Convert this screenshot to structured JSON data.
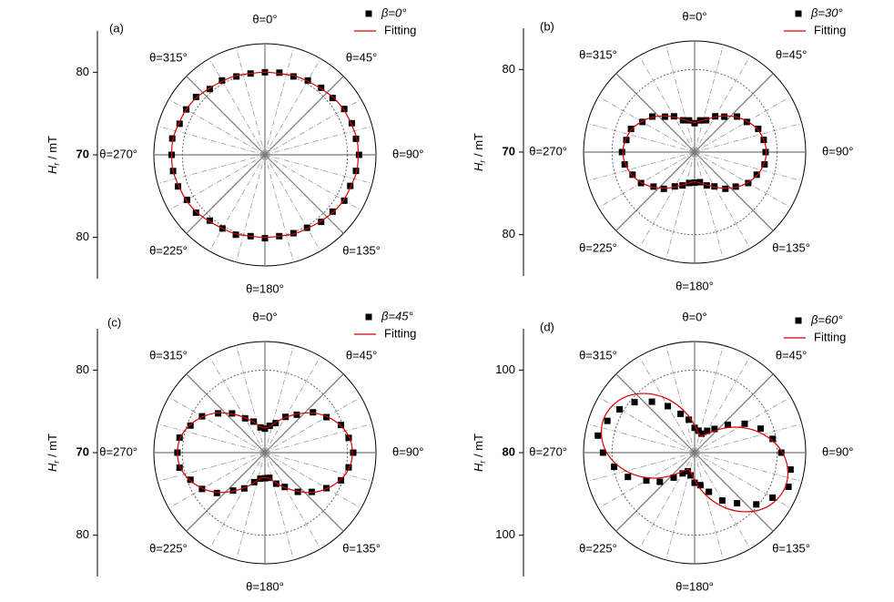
{
  "chart_data": [
    {
      "type": "polar",
      "panel_label": "(a)",
      "ylabel_symbol": "H",
      "ylabel_subscript": "r",
      "ylabel_unit": " / mT",
      "rlim": [
        70,
        85
      ],
      "rticks": [
        70,
        80
      ],
      "angle_ticks": [
        {
          "value": 0,
          "label": "θ=0°"
        },
        {
          "value": 45,
          "label": "θ=45°"
        },
        {
          "value": 90,
          "label": "θ=90°"
        },
        {
          "value": 135,
          "label": "θ=135°"
        },
        {
          "value": 180,
          "label": "θ=180°"
        },
        {
          "value": 225,
          "label": "θ=225°"
        },
        {
          "value": 270,
          "label": "θ=270°"
        },
        {
          "value": 315,
          "label": "θ=315°"
        }
      ],
      "theta": [
        0,
        10,
        20,
        30,
        40,
        50,
        60,
        70,
        80,
        90,
        100,
        110,
        120,
        130,
        140,
        150,
        160,
        170,
        180,
        190,
        200,
        210,
        220,
        230,
        240,
        250,
        260,
        270,
        280,
        290,
        300,
        310,
        320,
        330,
        340,
        350
      ],
      "series": [
        {
          "name": "β=0°",
          "color": "#000000",
          "values": [
            80.0,
            80.1,
            80.1,
            80.4,
            80.6,
            80.7,
            81.1,
            81.2,
            81.2,
            81.4,
            81.2,
            81.0,
            81.1,
            80.7,
            80.6,
            80.2,
            80.1,
            80.0,
            80.1,
            80.0,
            80.3,
            80.3,
            80.4,
            80.9,
            80.9,
            81.2,
            81.3,
            81.3,
            81.4,
            81.0,
            81.0,
            80.9,
            80.4,
            80.4,
            80.1,
            80.0
          ]
        },
        {
          "name": "Fitting",
          "color": "#d40000",
          "values": [
            80.0,
            80.0,
            80.2,
            80.3,
            80.5,
            80.8,
            81.0,
            81.1,
            81.3,
            81.3,
            81.3,
            81.1,
            81.0,
            80.8,
            80.5,
            80.3,
            80.2,
            80.0,
            80.0,
            80.0,
            80.2,
            80.3,
            80.5,
            80.8,
            81.0,
            81.1,
            81.3,
            81.3,
            81.3,
            81.1,
            81.0,
            80.8,
            80.5,
            80.3,
            80.2,
            80.0
          ]
        }
      ]
    },
    {
      "type": "polar",
      "panel_label": "(b)",
      "ylabel_symbol": "H",
      "ylabel_subscript": "r",
      "ylabel_unit": " / mT",
      "rlim": [
        70,
        85
      ],
      "rticks": [
        70,
        80
      ],
      "angle_ticks": [
        {
          "value": 0,
          "label": "θ=0°"
        },
        {
          "value": 45,
          "label": "θ=45°"
        },
        {
          "value": 90,
          "label": "θ=90°"
        },
        {
          "value": 135,
          "label": "θ=135°"
        },
        {
          "value": 180,
          "label": "θ=180°"
        },
        {
          "value": 225,
          "label": "θ=225°"
        },
        {
          "value": 270,
          "label": "θ=270°"
        },
        {
          "value": 315,
          "label": "θ=315°"
        }
      ],
      "theta": [
        0,
        10,
        20,
        30,
        40,
        50,
        60,
        70,
        80,
        90,
        100,
        110,
        120,
        130,
        140,
        150,
        160,
        170,
        180,
        190,
        200,
        210,
        220,
        230,
        240,
        250,
        260,
        270,
        280,
        290,
        300,
        310,
        320,
        330,
        340,
        350
      ],
      "series": [
        {
          "name": "β=30°",
          "color": "#000000",
          "values": [
            73.5,
            73.9,
            74.1,
            75.0,
            75.6,
            76.7,
            77.3,
            78.2,
            78.5,
            78.6,
            78.6,
            78.0,
            77.5,
            76.5,
            75.8,
            74.8,
            74.3,
            73.7,
            73.7,
            73.8,
            74.3,
            74.8,
            75.8,
            76.5,
            77.5,
            78.0,
            78.6,
            78.8,
            78.4,
            78.2,
            77.3,
            76.7,
            75.6,
            75.0,
            74.1,
            73.9
          ]
        },
        {
          "name": "Fitting",
          "color": "#d40000",
          "values": [
            73.6,
            73.8,
            74.2,
            74.9,
            75.7,
            76.6,
            77.4,
            78.1,
            78.5,
            78.7,
            78.5,
            78.1,
            77.4,
            76.6,
            75.7,
            74.9,
            74.2,
            73.8,
            73.6,
            73.8,
            74.2,
            74.9,
            75.7,
            76.6,
            77.4,
            78.1,
            78.5,
            78.7,
            78.5,
            78.1,
            77.4,
            76.6,
            75.7,
            74.9,
            74.2,
            73.8
          ]
        }
      ]
    },
    {
      "type": "polar",
      "panel_label": "(c)",
      "ylabel_symbol": "H",
      "ylabel_subscript": "r",
      "ylabel_unit": " / mT",
      "rlim": [
        70,
        85
      ],
      "rticks": [
        70,
        80
      ],
      "angle_ticks": [
        {
          "value": 0,
          "label": "θ=0°"
        },
        {
          "value": 45,
          "label": "θ=45°"
        },
        {
          "value": 90,
          "label": "θ=90°"
        },
        {
          "value": 135,
          "label": "θ=135°"
        },
        {
          "value": 180,
          "label": "θ=180°"
        },
        {
          "value": 225,
          "label": "θ=225°"
        },
        {
          "value": 270,
          "label": "θ=270°"
        },
        {
          "value": 315,
          "label": "θ=315°"
        }
      ],
      "theta": [
        0,
        10,
        20,
        30,
        40,
        50,
        60,
        70,
        80,
        90,
        100,
        110,
        120,
        130,
        140,
        150,
        160,
        170,
        180,
        190,
        200,
        210,
        220,
        230,
        240,
        250,
        260,
        270,
        280,
        290,
        300,
        310,
        320,
        330,
        340,
        350
      ],
      "series": [
        {
          "name": "β=45°",
          "color": "#000000",
          "values": [
            72.9,
            73.3,
            73.8,
            75.0,
            76.0,
            77.6,
            78.6,
            79.8,
            80.3,
            80.7,
            80.3,
            79.8,
            78.6,
            77.4,
            76.2,
            74.8,
            74.0,
            73.1,
            73.1,
            73.2,
            73.8,
            75.0,
            76.0,
            77.6,
            78.8,
            79.6,
            80.5,
            80.6,
            80.5,
            79.6,
            78.8,
            77.4,
            76.2,
            74.8,
            74.0,
            73.1
          ]
        },
        {
          "name": "Fitting",
          "color": "#d40000",
          "values": [
            73.0,
            73.2,
            73.9,
            74.9,
            76.1,
            77.5,
            78.7,
            79.7,
            80.4,
            80.6,
            80.4,
            79.7,
            78.7,
            77.5,
            76.1,
            74.9,
            73.9,
            73.2,
            73.0,
            73.2,
            73.9,
            74.9,
            76.1,
            77.5,
            78.7,
            79.7,
            80.4,
            80.6,
            80.4,
            79.7,
            78.7,
            77.5,
            76.1,
            74.9,
            73.9,
            73.2
          ]
        }
      ]
    },
    {
      "type": "polar",
      "panel_label": "(d)",
      "ylabel_symbol": "H",
      "ylabel_subscript": "r",
      "ylabel_unit": " / mT",
      "rlim": [
        80,
        110
      ],
      "rticks": [
        80,
        100
      ],
      "angle_ticks": [
        {
          "value": 0,
          "label": "θ=0°"
        },
        {
          "value": 45,
          "label": "θ=45°"
        },
        {
          "value": 90,
          "label": "θ=90°"
        },
        {
          "value": 135,
          "label": "θ=135°"
        },
        {
          "value": 180,
          "label": "θ=180°"
        },
        {
          "value": 225,
          "label": "θ=225°"
        },
        {
          "value": 270,
          "label": "θ=270°"
        },
        {
          "value": 315,
          "label": "θ=315°"
        }
      ],
      "theta": [
        0,
        10,
        20,
        30,
        40,
        50,
        60,
        70,
        80,
        90,
        100,
        110,
        120,
        130,
        140,
        150,
        160,
        170,
        180,
        190,
        200,
        210,
        220,
        230,
        240,
        250,
        260,
        270,
        280,
        290,
        300,
        310,
        320,
        330,
        340,
        350
      ],
      "series": [
        {
          "name": "β=60°",
          "color": "#000000",
          "values": [
            86.0,
            85.4,
            84.9,
            86.1,
            87.5,
            90.5,
            94.0,
            97.0,
            99.2,
            101.0,
            103.6,
            104.2,
            101.8,
            99.5,
            96.0,
            93.4,
            90.1,
            88.0,
            87.3,
            85.6,
            84.8,
            85.8,
            87.9,
            91.0,
            93.5,
            97.2,
            99.8,
            102.2,
            103.8,
            102.5,
            101.0,
            99.0,
            96.1,
            93.0,
            90.0,
            88.1
          ]
        },
        {
          "name": "Fitting",
          "color": "#d40000",
          "values": [
            86.6,
            85.0,
            84.4,
            85.0,
            86.6,
            89.2,
            92.3,
            95.6,
            98.7,
            101.3,
            102.9,
            103.5,
            102.9,
            101.3,
            98.7,
            95.6,
            92.3,
            89.2,
            86.6,
            85.0,
            84.4,
            85.0,
            86.6,
            89.2,
            92.3,
            95.6,
            98.7,
            101.3,
            102.9,
            103.5,
            102.9,
            101.3,
            98.7,
            95.6,
            92.3,
            89.2
          ]
        }
      ]
    }
  ]
}
